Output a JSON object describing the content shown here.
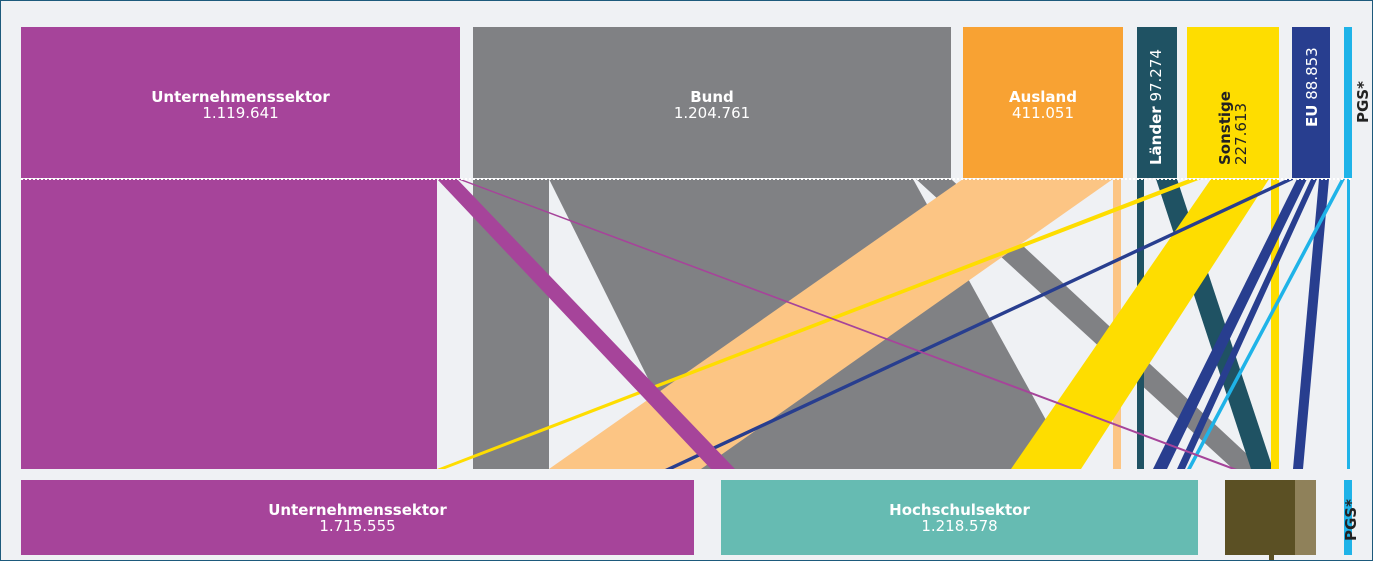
{
  "colors": {
    "unternehmen": "#a6449a",
    "bund": "#808184",
    "ausland": "#f8a233",
    "ausland_light": "#fcc584",
    "laender": "#1f5263",
    "sonstige": "#fedd00",
    "eu": "#283e8f",
    "pgs": "#1fb3e8",
    "hochschule": "#66bbb2",
    "third": "#5b5024",
    "third_light": "#8f815a",
    "background": "#eff1f4"
  },
  "sources": {
    "unternehmen": {
      "name": "Unternehmenssektor",
      "value": "1.119.641"
    },
    "bund": {
      "name": "Bund",
      "value": "1.204.761"
    },
    "ausland": {
      "name": "Ausland",
      "value": "411.051"
    },
    "laender": {
      "name": "Länder",
      "value": "97.274"
    },
    "sonstige": {
      "name": "Sonstige",
      "value": "227.613"
    },
    "eu": {
      "name": "EU",
      "value": "88.853"
    },
    "pgs": {
      "name": "PGS*",
      "value": ""
    }
  },
  "targets": {
    "unternehmen": {
      "name": "Unternehmenssektor",
      "value": "1.715.555"
    },
    "hochschule": {
      "name": "Hochschulsektor",
      "value": "1.218.578"
    },
    "pgs": {
      "name": "PGS*",
      "value": ""
    }
  }
}
